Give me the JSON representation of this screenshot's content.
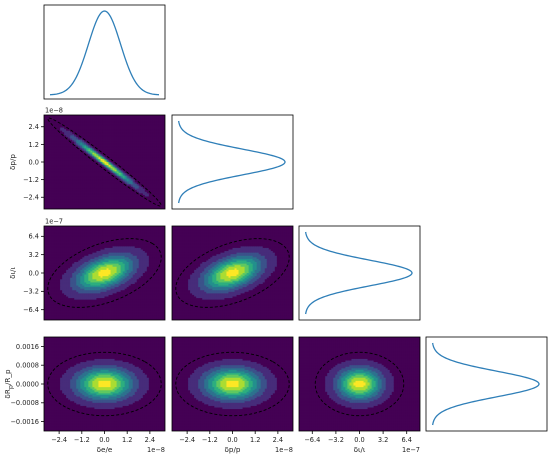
{
  "chart_data": {
    "type": "heatmap",
    "title": "",
    "grid": false,
    "colormap": "viridis",
    "line_color": "#2f7fb8",
    "contour_color": "#000000",
    "parameters": [
      {
        "label": "δe/e",
        "exponent": "1e−8",
        "ticks": [
          -2.4,
          -1.2,
          0.0,
          1.2,
          2.4
        ],
        "tick_labels": [
          "−2.4",
          "−1.2",
          "0.0",
          "1.2",
          "2.4"
        ],
        "range": [
          -3.2,
          3.2
        ],
        "sigma": 1.0
      },
      {
        "label": "δp/p",
        "exponent": "1e−8",
        "ticks": [
          -2.4,
          -1.2,
          0.0,
          1.2,
          2.4
        ],
        "tick_labels": [
          "−2.4",
          "−1.2",
          "0.0",
          "1.2",
          "2.4"
        ],
        "range": [
          -3.2,
          3.2
        ],
        "sigma": 1.0
      },
      {
        "label": "δι/ι",
        "exponent": "1e−7",
        "ticks": [
          -6.4,
          -3.2,
          0.0,
          3.2,
          6.4
        ],
        "tick_labels": [
          "−6.4",
          "−3.2",
          "0.0",
          "3.2",
          "6.4"
        ],
        "range": [
          -8.2,
          8.2
        ],
        "sigma": 2.0
      },
      {
        "label": "δR_p/R_p",
        "exponent": "",
        "ticks": [
          -0.0016,
          -0.0008,
          0.0,
          0.0008,
          0.0016
        ],
        "tick_labels": [
          "−0.0016",
          "−0.0008",
          "0.0000",
          "0.0008",
          "0.0016"
        ],
        "range": [
          -0.002,
          0.002
        ],
        "sigma": 0.00045
      }
    ],
    "correlations": [
      {
        "pair": [
          0,
          1
        ],
        "rho": -0.985
      },
      {
        "pair": [
          0,
          2
        ],
        "rho": 0.45
      },
      {
        "pair": [
          1,
          2
        ],
        "rho": 0.45
      },
      {
        "pair": [
          0,
          3
        ],
        "rho": 0.0
      },
      {
        "pair": [
          1,
          3
        ],
        "rho": 0.0
      },
      {
        "pair": [
          2,
          3
        ],
        "rho": 0.0
      }
    ]
  }
}
